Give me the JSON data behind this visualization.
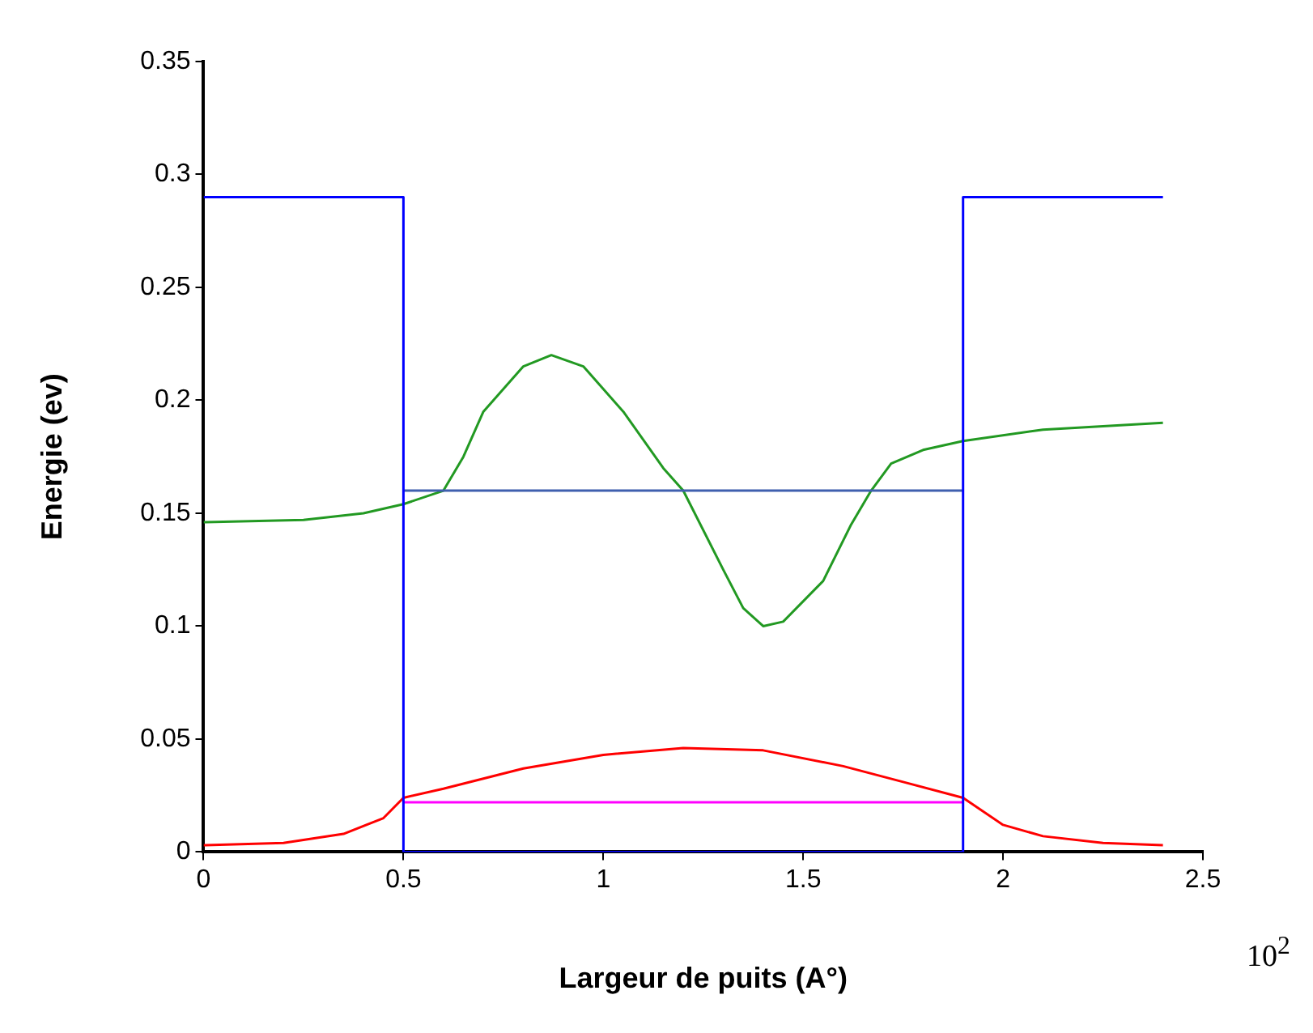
{
  "chart_data": {
    "type": "line",
    "xlabel": "Largeur de puits (A°)",
    "ylabel": "Energie (ev)",
    "annotations": [
      "10$^{2}$"
    ],
    "xlim": [
      0,
      2.5
    ],
    "xticks": [
      0,
      0.5,
      1,
      1.5,
      2,
      2.5
    ],
    "ylim": [
      0,
      0.35
    ],
    "yticks": [
      0,
      0.05,
      0.1,
      0.15,
      0.2,
      0.25,
      0.3,
      0.35
    ],
    "grid": false,
    "legend": false,
    "marker": "none",
    "line_style": "solid",
    "series": [
      {
        "color": "#0000ff",
        "x": [
          0,
          0.5,
          0.5,
          1.9,
          1.9,
          2.4
        ],
        "values": [
          0.29,
          0.29,
          0,
          0,
          0.29,
          0.29
        ]
      },
      {
        "color": "#3f5fae",
        "x": [
          0.5,
          1.9
        ],
        "values": [
          0.16,
          0.16
        ]
      },
      {
        "color": "#ff00ff",
        "x": [
          0.5,
          1.9
        ],
        "values": [
          0.022,
          0.022
        ]
      },
      {
        "color": "#229922",
        "x": [
          0,
          0.25,
          0.4,
          0.5,
          0.6,
          0.65,
          0.7,
          0.8,
          0.87,
          0.95,
          1.05,
          1.15,
          1.2,
          1.3,
          1.35,
          1.4,
          1.45,
          1.55,
          1.62,
          1.67,
          1.72,
          1.8,
          1.9,
          2.1,
          2.4
        ],
        "values": [
          0.146,
          0.147,
          0.15,
          0.154,
          0.16,
          0.175,
          0.195,
          0.215,
          0.22,
          0.215,
          0.195,
          0.17,
          0.16,
          0.125,
          0.108,
          0.1,
          0.102,
          0.12,
          0.145,
          0.16,
          0.172,
          0.178,
          0.182,
          0.187,
          0.19
        ]
      },
      {
        "color": "#ff0000",
        "x": [
          0,
          0.2,
          0.35,
          0.45,
          0.5,
          0.6,
          0.8,
          1,
          1.2,
          1.4,
          1.6,
          1.75,
          1.9,
          2,
          2.1,
          2.25,
          2.4
        ],
        "values": [
          0.003,
          0.004,
          0.008,
          0.015,
          0.024,
          0.028,
          0.037,
          0.043,
          0.046,
          0.045,
          0.038,
          0.031,
          0.024,
          0.012,
          0.007,
          0.004,
          0.003
        ]
      }
    ]
  }
}
